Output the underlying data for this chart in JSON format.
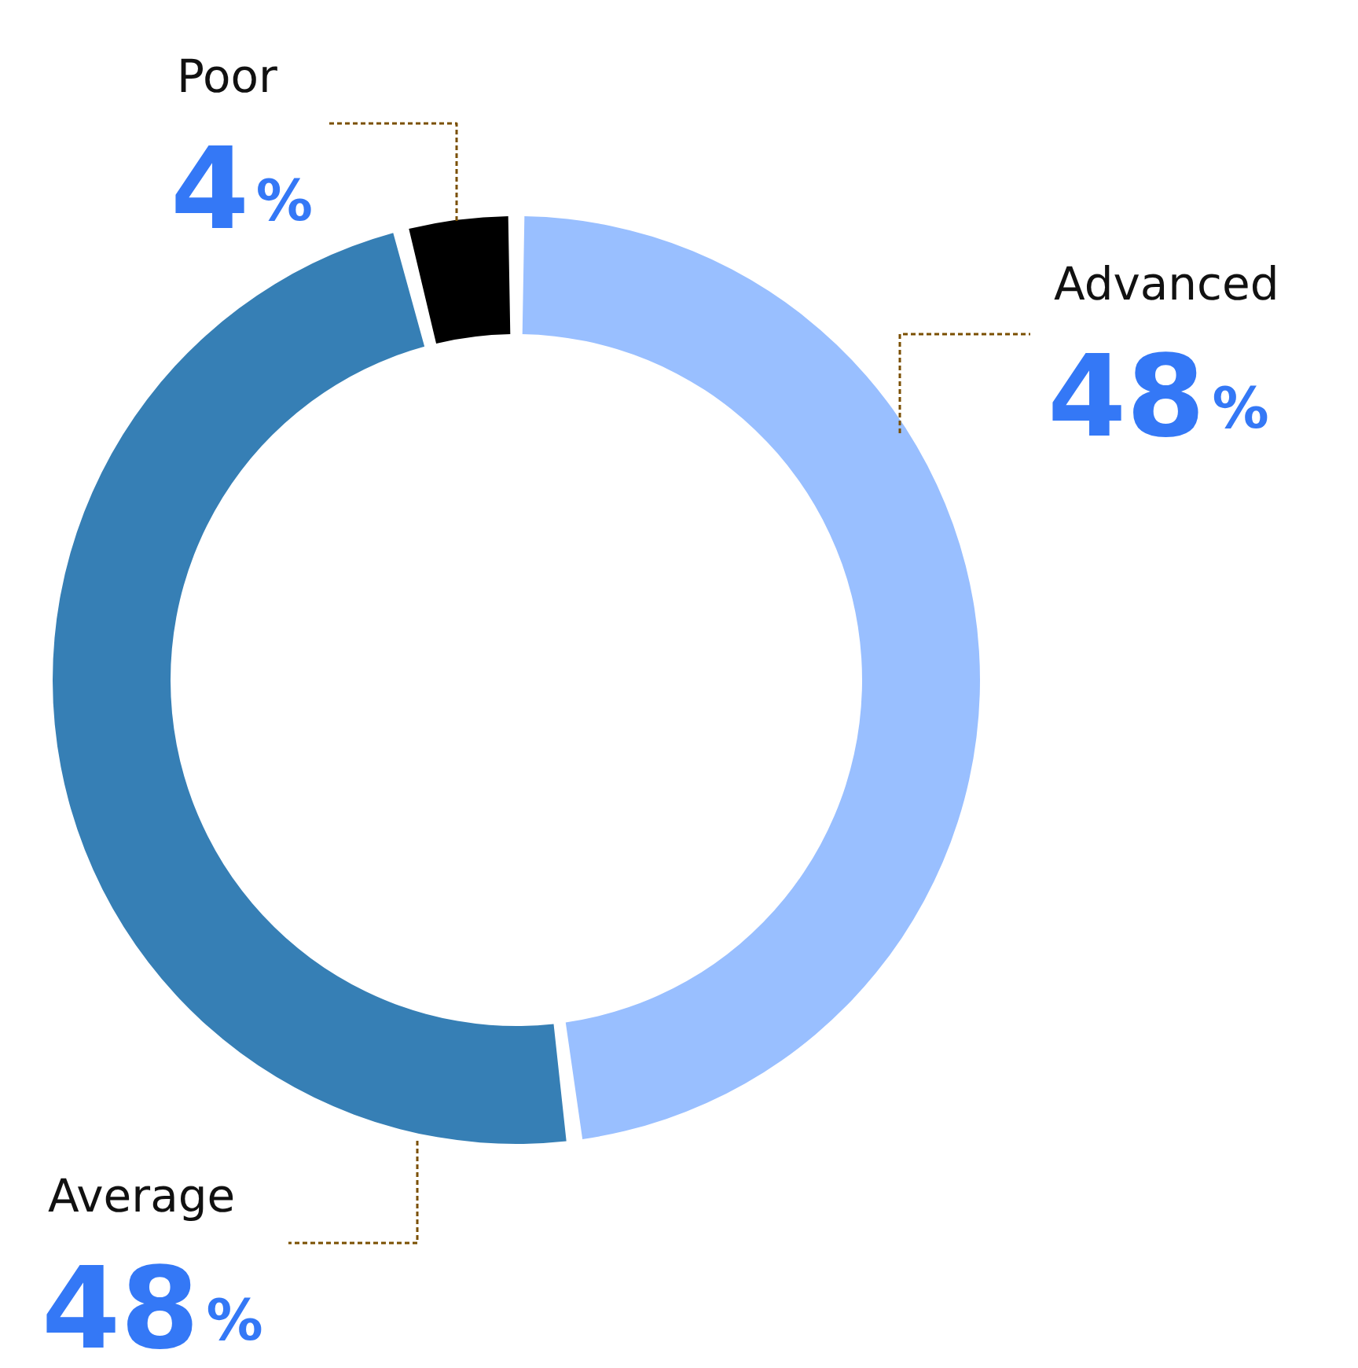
{
  "chart_data": {
    "type": "donut",
    "categories": [
      "Advanced",
      "Average",
      "Poor"
    ],
    "values": [
      48,
      48,
      4
    ],
    "colors": [
      "#99bfff",
      "#367fb5",
      "#000000"
    ],
    "value_labels": [
      "48%",
      "48%",
      "4%"
    ]
  }
}
